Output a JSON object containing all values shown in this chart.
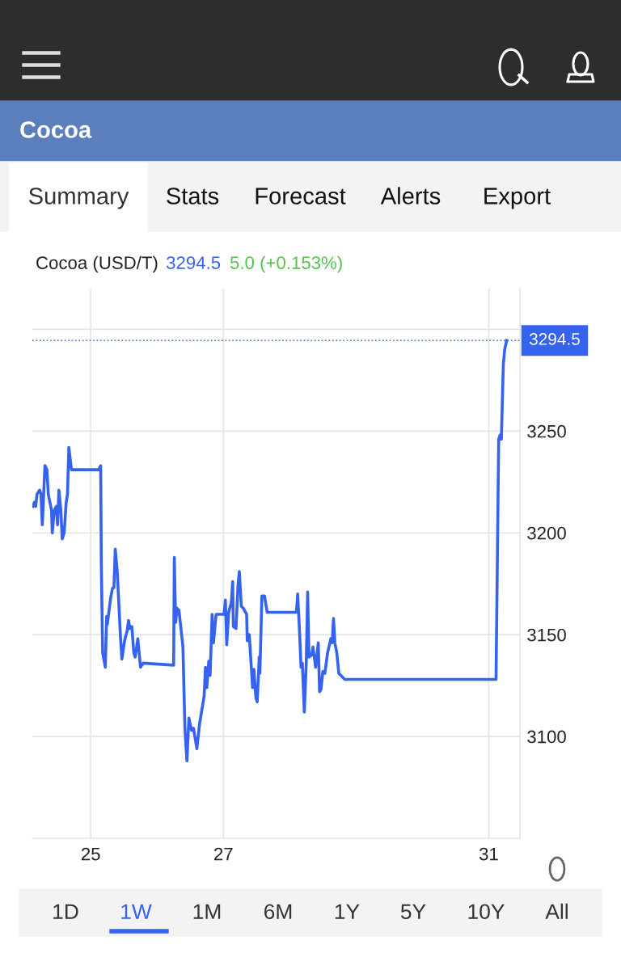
{
  "chart_data": {
    "type": "line",
    "title": "Cocoa",
    "subtitle": "Cocoa (USD/T)",
    "annotations": [
      "3294.5",
      "5.0 (+0.153%)",
      "Summary",
      "Stats",
      "Forecast",
      "Alerts",
      "Export",
      "1D",
      "1W",
      "1M",
      "6M",
      "1Y",
      "5Y",
      "10Y",
      "All"
    ],
    "x": [
      24.13,
      24.15,
      24.17,
      24.19,
      24.23,
      24.25,
      24.27,
      24.31,
      24.34,
      24.36,
      24.41,
      24.42,
      24.45,
      24.48,
      24.5,
      24.52,
      24.55,
      24.57,
      24.6,
      24.63,
      24.65,
      24.67,
      24.71,
      24.75,
      25.12,
      25.15,
      25.16,
      25.18,
      25.22,
      25.24,
      25.25,
      25.3,
      25.33,
      25.35,
      25.37,
      25.4,
      25.45,
      25.47,
      25.51,
      25.55,
      25.57,
      25.59,
      25.62,
      25.65,
      25.67,
      25.71,
      25.75,
      25.79,
      26.25,
      26.26,
      26.28,
      26.3,
      26.33,
      26.35,
      26.39,
      26.42,
      26.45,
      26.48,
      26.52,
      26.55,
      26.6,
      26.64,
      26.67,
      26.71,
      26.73,
      26.75,
      26.78,
      26.8,
      26.83,
      26.85,
      26.89,
      27.01,
      27.03,
      27.05,
      27.08,
      27.12,
      27.14,
      27.15,
      27.19,
      27.22,
      27.24,
      27.27,
      27.3,
      27.35,
      27.36,
      27.39,
      27.44,
      27.46,
      27.49,
      27.51,
      27.54,
      27.55,
      27.58,
      27.62,
      27.66,
      27.75,
      28.1,
      28.12,
      28.15,
      28.17,
      28.19,
      28.22,
      28.25,
      28.27,
      28.29,
      28.33,
      28.35,
      28.39,
      28.43,
      28.45,
      28.47,
      28.5,
      28.53,
      28.57,
      28.62,
      28.64,
      28.66,
      28.68,
      28.71,
      28.74,
      28.83,
      31.11,
      31.14,
      31.15,
      31.17,
      31.19,
      31.22,
      31.24,
      31.27
    ],
    "series": [
      {
        "color": "#3563ee",
        "values": [
          3213,
          3215,
          3213,
          3219,
          3221,
          3219,
          3204,
          3233,
          3231,
          3219,
          3211,
          3200,
          3211,
          3213,
          3204,
          3221,
          3211,
          3197,
          3200,
          3215,
          3219,
          3242,
          3231,
          3231,
          3231,
          3233,
          3184,
          3141,
          3134,
          3159,
          3155,
          3168,
          3173,
          3173,
          3192,
          3181,
          3148,
          3138,
          3147,
          3152,
          3157,
          3153,
          3154,
          3141,
          3139,
          3148,
          3134,
          3136,
          3135,
          3188,
          3156,
          3163,
          3162,
          3156,
          3144,
          3104,
          3088,
          3109,
          3103,
          3104,
          3094,
          3106,
          3112,
          3120,
          3134,
          3124,
          3137,
          3130,
          3160,
          3146,
          3160,
          3160,
          3167,
          3145,
          3161,
          3166,
          3176,
          3154,
          3153,
          3174,
          3181,
          3164,
          3163,
          3160,
          3147,
          3150,
          3124,
          3133,
          3119,
          3117,
          3139,
          3131,
          3169,
          3169,
          3161,
          3161,
          3161,
          3170,
          3150,
          3134,
          3136,
          3112,
          3137,
          3171,
          3139,
          3140,
          3144,
          3134,
          3146,
          3122,
          3123,
          3132,
          3131,
          3141,
          3148,
          3146,
          3158,
          3146,
          3141,
          3131,
          3128,
          3128,
          3217,
          3246,
          3248,
          3246,
          3283,
          3290,
          3294.5
        ]
      }
    ],
    "xlim": [
      24.12,
      31.47
    ],
    "xticks": [
      25,
      27,
      31
    ],
    "ylim": [
      3050,
      3320
    ],
    "yticks": [
      3100,
      3150,
      3200,
      3250,
      {
        "value": 3300,
        "label": null
      }
    ],
    "ref_lines": [
      {
        "axis": "y",
        "value": 3294.5,
        "label": "3294.5",
        "color": "#3563ee",
        "line_style": "dotted"
      }
    ],
    "grid": true,
    "marker": "none",
    "line_style": "solid"
  }
}
